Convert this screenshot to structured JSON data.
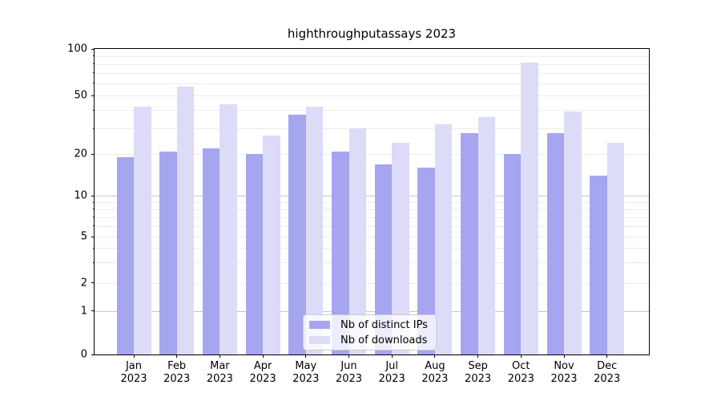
{
  "title": "highthroughputassays 2023",
  "legend": {
    "items": [
      {
        "label": "Nb of distinct IPs",
        "color": "#a5a5f0"
      },
      {
        "label": "Nb of downloads",
        "color": "#dcdcf8"
      }
    ]
  },
  "chart_data": {
    "type": "bar",
    "title": "highthroughputassays 2023",
    "categories": [
      "Jan 2023",
      "Feb 2023",
      "Mar 2023",
      "Apr 2023",
      "May 2023",
      "Jun 2023",
      "Jul 2023",
      "Aug 2023",
      "Sep 2023",
      "Oct 2023",
      "Nov 2023",
      "Dec 2023"
    ],
    "series": [
      {
        "name": "Nb of distinct IPs",
        "color": "#a5a5f0",
        "values": [
          19,
          21,
          22,
          20,
          37,
          21,
          17,
          16,
          28,
          20,
          28,
          14
        ]
      },
      {
        "name": "Nb of downloads",
        "color": "#dcdcf8",
        "values": [
          42,
          57,
          44,
          27,
          42,
          30,
          24,
          32,
          36,
          82,
          39,
          24
        ]
      }
    ],
    "y_axis": {
      "scale": "symlog-like",
      "ylim": [
        0,
        100
      ],
      "labeled_ticks": [
        0,
        1,
        2,
        5,
        10,
        20,
        50,
        100
      ],
      "major_gridlines": [
        1,
        10
      ],
      "minor_gridlines": [
        2,
        3,
        4,
        5,
        6,
        7,
        8,
        9,
        20,
        30,
        40,
        50,
        60,
        70,
        80,
        90
      ],
      "tick_fractions": {
        "0": 0,
        "1": 0.143,
        "2": 0.234,
        "5": 0.385,
        "10": 0.519,
        "20": 0.655,
        "50": 0.847,
        "100": 1.0
      }
    },
    "x_axis": {
      "tick_count": 12
    },
    "legend_position": "lower center",
    "grid": "both"
  }
}
